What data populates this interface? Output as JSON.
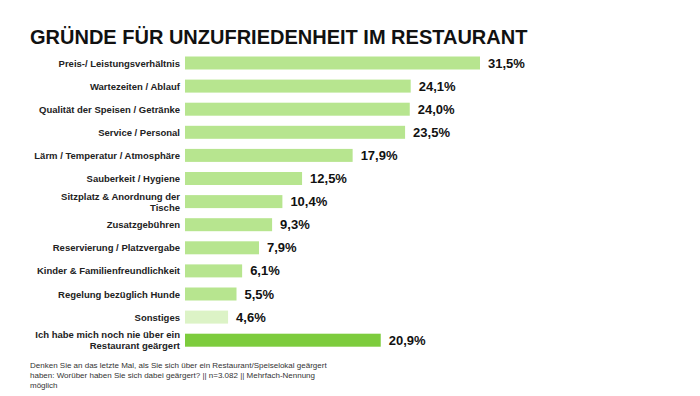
{
  "chart_data": {
    "type": "bar",
    "orientation": "horizontal",
    "title": "GRÜNDE FÜR UNZUFRIEDENHEIT IM RESTAURANT",
    "categories": [
      "Preis-/ Leistungsverhältnis",
      "Wartezeiten / Ablauf",
      "Qualität der Speisen / Getränke",
      "Service / Personal",
      "Lärm / Temperatur / Atmosphäre",
      "Sauberkeit / Hygiene",
      "Sitzplatz & Anordnung der Tische",
      "Zusatzgebühren",
      "Reservierung / Platzvergabe",
      "Kinder & Familienfreundlichkeit",
      "Regelung bezüglich Hunde",
      "Sonstiges",
      "Ich habe mich noch nie über ein Restaurant geärgert"
    ],
    "values": [
      31.5,
      24.1,
      24.0,
      23.5,
      17.9,
      12.5,
      10.4,
      9.3,
      7.9,
      6.1,
      5.5,
      4.6,
      20.9
    ],
    "value_labels": [
      "31,5%",
      "24,1%",
      "24,0%",
      "23,5%",
      "17,9%",
      "12,5%",
      "10,4%",
      "9,3%",
      "7,9%",
      "6,1%",
      "5,5%",
      "4,6%",
      "20,9%"
    ],
    "colors": [
      "#b7e58f",
      "#b7e58f",
      "#b7e58f",
      "#b7e58f",
      "#b7e58f",
      "#b7e58f",
      "#b7e58f",
      "#b7e58f",
      "#b7e58f",
      "#b7e58f",
      "#b7e58f",
      "#dcf3c6",
      "#7dcc3d"
    ],
    "data_labels": true,
    "tick_labels": false,
    "grid": false,
    "annotations": [
      "Denken Sie an das letzte Mal, als Sie sich über ein Restaurant/Speiselokal geärgert haben: Worüber haben Sie sich dabei geärgert? || n=3.082 || Mehrfach-Nennung möglich"
    ]
  }
}
